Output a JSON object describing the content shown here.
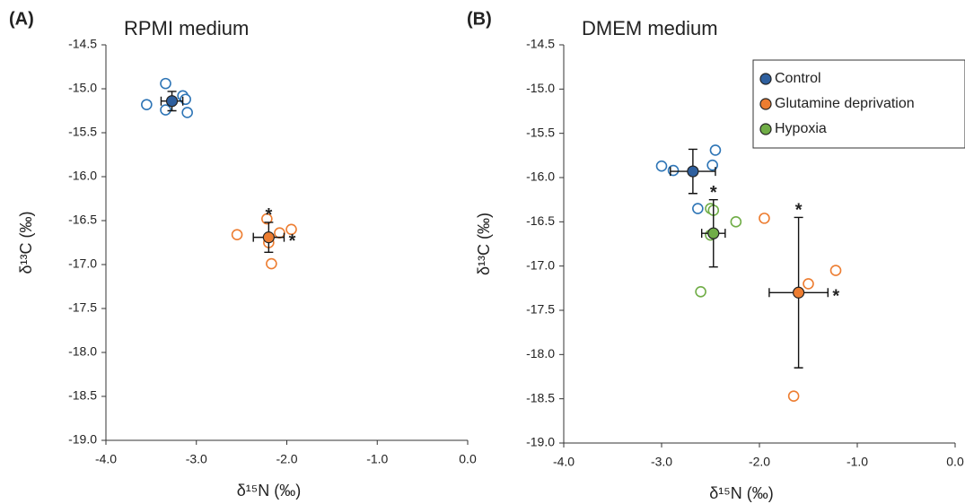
{
  "chart_data": [
    {
      "type": "scatter",
      "panel_label": "(A)",
      "title": "RPMI medium",
      "x_label": "δ¹⁵N (‰)",
      "y_label": "δ¹³C (‰)",
      "xlim": [
        -4,
        0
      ],
      "xticks": [
        {
          "value": -4,
          "label": "-4.0"
        },
        {
          "value": -3,
          "label": "-3.0"
        },
        {
          "value": -2,
          "label": "-2.0"
        },
        {
          "value": -1,
          "label": "-1.0"
        },
        {
          "value": 0,
          "label": "0.0"
        }
      ],
      "ylim": [
        -19,
        -14.5
      ],
      "yticks": [
        -14.5,
        {
          "value": -15,
          "label": "-15.0"
        },
        -15.5,
        {
          "value": -16,
          "label": "-16.0"
        },
        -16.5,
        {
          "value": -17,
          "label": "-17.0"
        },
        -17.5,
        {
          "value": -18,
          "label": "-18.0"
        },
        -18.5,
        {
          "value": -19,
          "label": "-19.0"
        }
      ],
      "series": [
        {
          "color": "#2e75b6",
          "mean_color": "#2e5f9e",
          "x": [
            -3.55,
            -3.34,
            -3.34,
            -3.15,
            -3.12,
            -3.1
          ],
          "values": [
            -15.18,
            -14.94,
            -15.24,
            -15.08,
            -15.12,
            -15.27
          ],
          "mean_x": -3.27,
          "mean_y": -15.14,
          "x_error": 0.12,
          "y_error": 0.11,
          "annotations": []
        },
        {
          "color": "#ed7d31",
          "mean_color": "#ed7d31",
          "x": [
            -2.55,
            -2.22,
            -2.2,
            -2.08,
            -1.95,
            -2.17
          ],
          "values": [
            -16.66,
            -16.48,
            -16.75,
            -16.64,
            -16.6,
            -16.99
          ],
          "mean_x": -2.2,
          "mean_y": -16.69,
          "x_error": 0.17,
          "y_error": 0.17,
          "annotations": [
            {
              "text": "*",
              "side": "top"
            },
            {
              "text": "*",
              "side": "right"
            }
          ]
        }
      ]
    },
    {
      "type": "scatter",
      "panel_label": "(B)",
      "title": "DMEM medium",
      "x_label": "δ¹⁵N (‰)",
      "y_label": "δ¹³C (‰)",
      "legend": "upper right",
      "xlim": [
        -4,
        0
      ],
      "xticks": [
        {
          "value": -4,
          "label": "-4.0"
        },
        {
          "value": -3,
          "label": "-3.0"
        },
        {
          "value": -2,
          "label": "-2.0"
        },
        {
          "value": -1,
          "label": "-1.0"
        },
        {
          "value": 0,
          "label": "0.0"
        }
      ],
      "ylim": [
        -19,
        -14.5
      ],
      "yticks": [
        -14.5,
        {
          "value": -15,
          "label": "-15.0"
        },
        -15.5,
        {
          "value": -16,
          "label": "-16.0"
        },
        -16.5,
        {
          "value": -17,
          "label": "-17.0"
        },
        -17.5,
        {
          "value": -18,
          "label": "-18.0"
        },
        -18.5,
        {
          "value": -19,
          "label": "-19.0"
        }
      ],
      "series": [
        {
          "name": "Control",
          "color": "#2e75b6",
          "mean_color": "#2e5f9e",
          "x": [
            -3.0,
            -2.88,
            -2.63,
            -2.48,
            -2.45
          ],
          "values": [
            -15.87,
            -15.92,
            -16.35,
            -15.86,
            -15.69
          ],
          "mean_x": -2.68,
          "mean_y": -15.93,
          "x_error": 0.23,
          "y_error": 0.25,
          "annotations": []
        },
        {
          "name": "Glutamine deprivation",
          "color": "#ed7d31",
          "mean_color": "#ed7d31",
          "x": [
            -1.95,
            -1.5,
            -1.22,
            -1.65
          ],
          "values": [
            -16.46,
            -17.2,
            -17.05,
            -18.47
          ],
          "mean_x": -1.6,
          "mean_y": -17.3,
          "x_error": 0.3,
          "y_error": 0.85,
          "annotations": [
            {
              "text": "*",
              "side": "top"
            },
            {
              "text": "*",
              "side": "right"
            }
          ]
        },
        {
          "name": "Hypoxia",
          "color": "#70ad47",
          "mean_color": "#70ad47",
          "x": [
            -2.6,
            -2.5,
            -2.47,
            -2.24,
            -2.5
          ],
          "values": [
            -17.29,
            -16.35,
            -16.37,
            -16.5,
            -16.65
          ],
          "mean_x": -2.47,
          "mean_y": -16.63,
          "x_error": 0.12,
          "y_error": 0.38,
          "annotations": [
            {
              "text": "*",
              "side": "top"
            }
          ]
        }
      ]
    }
  ]
}
